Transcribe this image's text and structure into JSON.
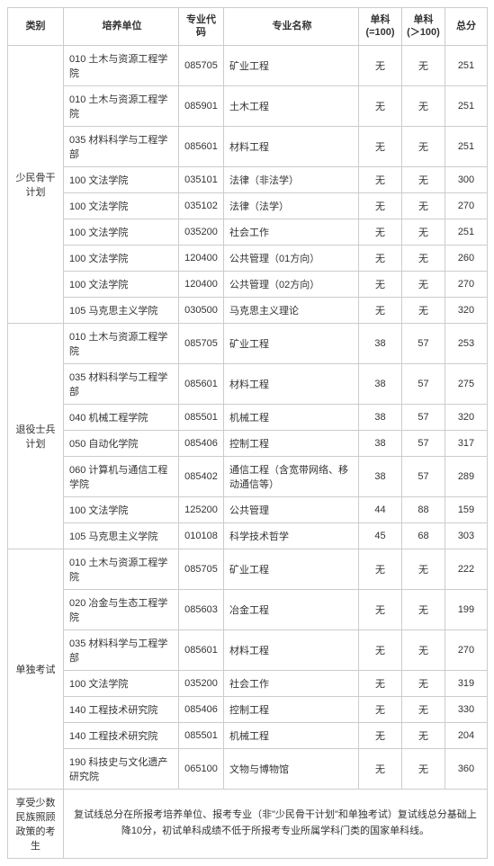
{
  "headers": {
    "category": "类别",
    "unit": "培养单位",
    "code": "专业代码",
    "name": "专业名称",
    "sub1_l1": "单科",
    "sub1_l2": "(=100)",
    "sub2_l1": "单科",
    "sub2_l2": "(＞100)",
    "total": "总分"
  },
  "groups": [
    {
      "category": "少民骨干计划",
      "rows": [
        {
          "unit": "010 土木与资源工程学院",
          "code": "085705",
          "name": "矿业工程",
          "s1": "无",
          "s2": "无",
          "tot": "251"
        },
        {
          "unit": "010 土木与资源工程学院",
          "code": "085901",
          "name": "土木工程",
          "s1": "无",
          "s2": "无",
          "tot": "251"
        },
        {
          "unit": "035 材料科学与工程学部",
          "code": "085601",
          "name": "材料工程",
          "s1": "无",
          "s2": "无",
          "tot": "251"
        },
        {
          "unit": "100 文法学院",
          "code": "035101",
          "name": "法律（非法学）",
          "s1": "无",
          "s2": "无",
          "tot": "300"
        },
        {
          "unit": "100 文法学院",
          "code": "035102",
          "name": "法律（法学）",
          "s1": "无",
          "s2": "无",
          "tot": "270"
        },
        {
          "unit": "100 文法学院",
          "code": "035200",
          "name": "社会工作",
          "s1": "无",
          "s2": "无",
          "tot": "251"
        },
        {
          "unit": "100 文法学院",
          "code": "120400",
          "name": "公共管理（01方向）",
          "s1": "无",
          "s2": "无",
          "tot": "260"
        },
        {
          "unit": "100 文法学院",
          "code": "120400",
          "name": "公共管理（02方向）",
          "s1": "无",
          "s2": "无",
          "tot": "270"
        },
        {
          "unit": "105 马克思主义学院",
          "code": "030500",
          "name": "马克思主义理论",
          "s1": "无",
          "s2": "无",
          "tot": "320"
        }
      ]
    },
    {
      "category": "退役士兵计划",
      "rows": [
        {
          "unit": "010 土木与资源工程学院",
          "code": "085705",
          "name": "矿业工程",
          "s1": "38",
          "s2": "57",
          "tot": "253"
        },
        {
          "unit": "035 材料科学与工程学部",
          "code": "085601",
          "name": "材料工程",
          "s1": "38",
          "s2": "57",
          "tot": "275"
        },
        {
          "unit": "040 机械工程学院",
          "code": "085501",
          "name": "机械工程",
          "s1": "38",
          "s2": "57",
          "tot": "320"
        },
        {
          "unit": "050 自动化学院",
          "code": "085406",
          "name": "控制工程",
          "s1": "38",
          "s2": "57",
          "tot": "317"
        },
        {
          "unit": "060 计算机与通信工程学院",
          "code": "085402",
          "name": "通信工程（含宽带网络、移动通信等）",
          "s1": "38",
          "s2": "57",
          "tot": "289"
        },
        {
          "unit": "100 文法学院",
          "code": "125200",
          "name": "公共管理",
          "s1": "44",
          "s2": "88",
          "tot": "159"
        },
        {
          "unit": "105 马克思主义学院",
          "code": "010108",
          "name": "科学技术哲学",
          "s1": "45",
          "s2": "68",
          "tot": "303"
        }
      ]
    },
    {
      "category": "单独考试",
      "rows": [
        {
          "unit": "010 土木与资源工程学院",
          "code": "085705",
          "name": "矿业工程",
          "s1": "无",
          "s2": "无",
          "tot": "222"
        },
        {
          "unit": "020 冶金与生态工程学院",
          "code": "085603",
          "name": "冶金工程",
          "s1": "无",
          "s2": "无",
          "tot": "199"
        },
        {
          "unit": "035 材料科学与工程学部",
          "code": "085601",
          "name": "材料工程",
          "s1": "无",
          "s2": "无",
          "tot": "270"
        },
        {
          "unit": "100 文法学院",
          "code": "035200",
          "name": "社会工作",
          "s1": "无",
          "s2": "无",
          "tot": "319"
        },
        {
          "unit": "140 工程技术研究院",
          "code": "085406",
          "name": "控制工程",
          "s1": "无",
          "s2": "无",
          "tot": "330"
        },
        {
          "unit": "140 工程技术研究院",
          "code": "085501",
          "name": "机械工程",
          "s1": "无",
          "s2": "无",
          "tot": "204"
        },
        {
          "unit": "190 科技史与文化遗产研究院",
          "code": "065100",
          "name": "文物与博物馆",
          "s1": "无",
          "s2": "无",
          "tot": "360"
        }
      ]
    }
  ],
  "footnote": {
    "category": "享受少数民族照顾政策的考生",
    "text": "复试线总分在所报考培养单位、报考专业（非\"少民骨干计划\"和单独考试）复试线总分基础上降10分，初试单科成绩不低于所报考专业所属学科门类的国家单科线。"
  }
}
